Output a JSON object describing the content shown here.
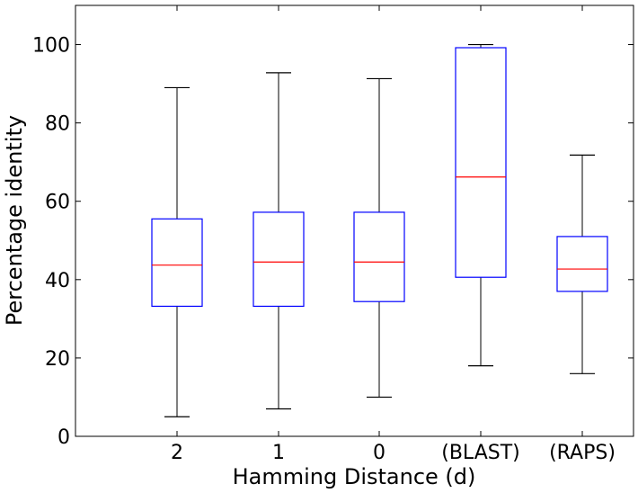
{
  "chart_data": {
    "type": "box",
    "xlabel": "Hamming Distance (d)",
    "ylabel": "Percentage identity",
    "ylim": [
      0,
      110
    ],
    "yticks": [
      0,
      20,
      40,
      60,
      80,
      100
    ],
    "grid": false,
    "categories": [
      "2",
      "1",
      "0",
      "(BLAST)",
      "(RAPS)"
    ],
    "boxes": [
      {
        "category": "2",
        "whisker_low": 5,
        "q1": 33.2,
        "median": 43.7,
        "q3": 55.5,
        "whisker_high": 89
      },
      {
        "category": "1",
        "whisker_low": 7,
        "q1": 33.2,
        "median": 44.5,
        "q3": 57.2,
        "whisker_high": 92.8
      },
      {
        "category": "0",
        "whisker_low": 10,
        "q1": 34.4,
        "median": 44.5,
        "q3": 57.2,
        "whisker_high": 91.3
      },
      {
        "category": "(BLAST)",
        "whisker_low": 18,
        "q1": 40.6,
        "median": 66.2,
        "q3": 99.2,
        "whisker_high": 100
      },
      {
        "category": "(RAPS)",
        "whisker_low": 16,
        "q1": 37.0,
        "median": 42.7,
        "q3": 51.0,
        "whisker_high": 71.8
      }
    ],
    "colors": {
      "box": "#0000ff",
      "median": "#ff0000",
      "whisker": "#000000",
      "axes": "#000000"
    }
  }
}
